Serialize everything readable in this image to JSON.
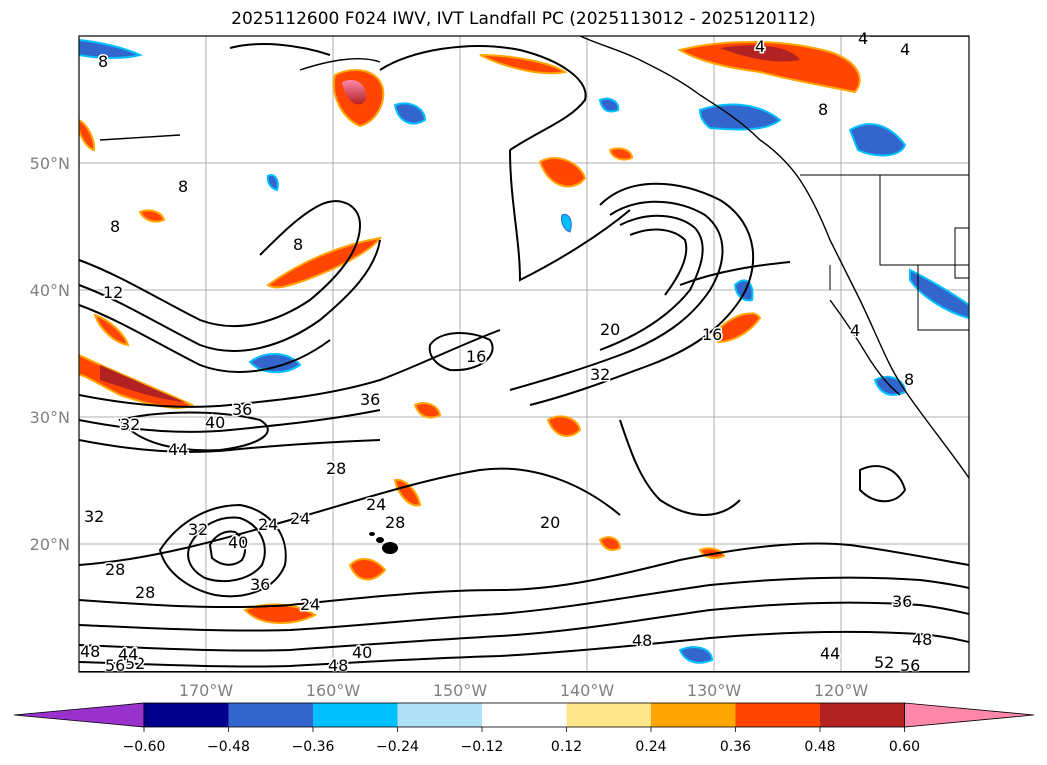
{
  "title": "2025112600 F024 IWV, IVT Landfall PC (2025113012 - 2025120112)",
  "lat_labels": [
    "50°N",
    "40°N",
    "30°N",
    "20°N"
  ],
  "lon_labels": [
    "170°W",
    "160°W",
    "150°W",
    "140°W",
    "130°W",
    "120°W"
  ],
  "colorbar": {
    "ticks": [
      "−0.60",
      "−0.48",
      "−0.36",
      "−0.24",
      "−0.12",
      "0.12",
      "0.24",
      "0.36",
      "0.48",
      "0.60"
    ],
    "colors": [
      "#9932cc",
      "#00008b",
      "#3366cc",
      "#00bfff",
      "#b0e0f8",
      "#ffffff",
      "#ffe88c",
      "#ffa500",
      "#ff4500",
      "#b22222",
      "#ff88aa"
    ]
  },
  "contour_labels": [
    "8",
    "8",
    "8",
    "8",
    "4",
    "4",
    "8",
    "12",
    "16",
    "20",
    "16",
    "32",
    "36",
    "40",
    "32",
    "44",
    "36",
    "28",
    "24",
    "24",
    "28",
    "20",
    "32",
    "24",
    "28",
    "32",
    "36",
    "40",
    "28",
    "24",
    "36",
    "48",
    "44",
    "48",
    "52",
    "56",
    "40",
    "48",
    "52",
    "48",
    "56",
    "44",
    "4",
    "4",
    "8"
  ]
}
